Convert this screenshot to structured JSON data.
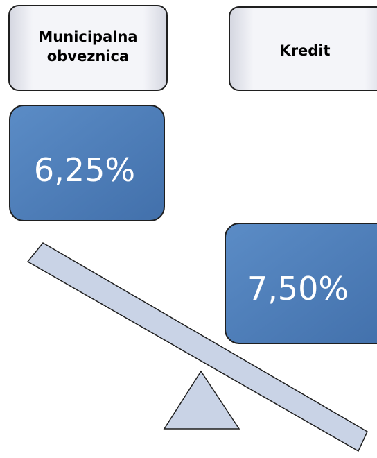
{
  "items": [
    {
      "label_lines": [
        "Municipalna",
        "obveznica"
      ],
      "rate": "6,25%"
    },
    {
      "label_lines": [
        "Kredit"
      ],
      "rate": "7,50%"
    }
  ]
}
